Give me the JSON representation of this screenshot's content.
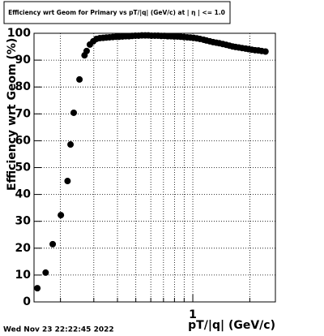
{
  "chart_data": {
    "type": "scatter",
    "title": "Efficiency wrt Geom for Primary vs pT/|q| (GeV/c) at | η | <= 1.0",
    "x_label": "pT/|q| (GeV/c)",
    "y_label": "Efficiency wrt Geom (%)",
    "timestamp": "Wed Nov 23 22:22:45 2022",
    "log_x": true,
    "grid": true,
    "color": "#000000",
    "xlim": [
      0.145,
      2.73
    ],
    "ylim": [
      0,
      100
    ],
    "xticks": [
      1
    ],
    "xminor": [
      0.2,
      0.3,
      0.4,
      0.5,
      0.6,
      0.7,
      0.8,
      0.9,
      2
    ],
    "yticks": [
      0,
      10,
      20,
      30,
      40,
      50,
      60,
      70,
      80,
      90,
      100
    ],
    "x": [
      0.151,
      0.167,
      0.182,
      0.201,
      0.218,
      0.226,
      0.235,
      0.252,
      0.268,
      0.275,
      0.286,
      0.298,
      0.31,
      0.323,
      0.336,
      0.349,
      0.363,
      0.378,
      0.393,
      0.408,
      0.425,
      0.442,
      0.46,
      0.478,
      0.497,
      0.517,
      0.538,
      0.56,
      0.582,
      0.605,
      0.63,
      0.655,
      0.681,
      0.708,
      0.737,
      0.767,
      0.798,
      0.83,
      0.863,
      0.898,
      0.934,
      0.971,
      1.01,
      1.05,
      1.09,
      1.14,
      1.18,
      1.23,
      1.28,
      1.33,
      1.38,
      1.44,
      1.5,
      1.56,
      1.62,
      1.68,
      1.75,
      1.82,
      1.9,
      1.97,
      2.05,
      2.13,
      2.22,
      2.31,
      2.42
    ],
    "values": [
      5.1,
      10.9,
      21.5,
      32.3,
      45,
      58.6,
      70.4,
      82.8,
      91.8,
      93.4,
      95.8,
      97,
      97.9,
      98.2,
      98.3,
      98.4,
      98.5,
      98.6,
      98.7,
      98.7,
      98.8,
      98.9,
      98.9,
      99,
      99.1,
      99.1,
      99.2,
      99.2,
      99.2,
      99.1,
      99.1,
      99.1,
      99,
      99,
      98.9,
      98.9,
      98.8,
      98.8,
      98.7,
      98.6,
      98.5,
      98.4,
      98.3,
      98.1,
      97.9,
      97.6,
      97.3,
      97,
      96.7,
      96.5,
      96.3,
      96,
      95.7,
      95.4,
      95.1,
      94.9,
      94.7,
      94.5,
      94.3,
      94.1,
      93.9,
      93.7,
      93.6,
      93.4,
      93.2
    ]
  }
}
